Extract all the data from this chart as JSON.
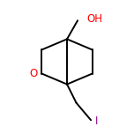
{
  "background_color": "#ffffff",
  "bond_color": "#000000",
  "atom_colors": {
    "O": "#ff0000",
    "I": "#8b008b",
    "C": "#000000"
  },
  "figsize": [
    1.52,
    1.52
  ],
  "dpi": 100,
  "linewidth": 1.4
}
